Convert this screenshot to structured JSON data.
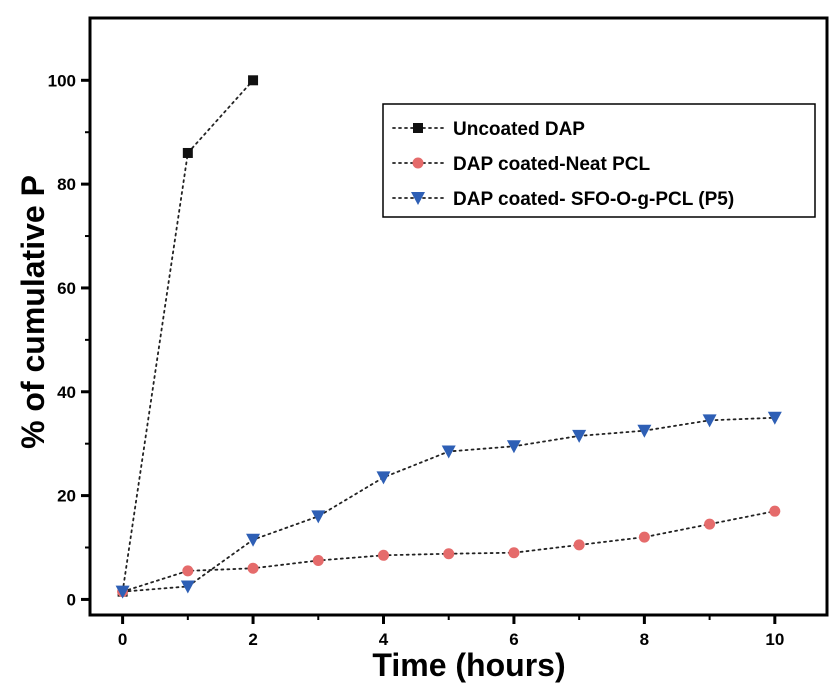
{
  "chart_data": {
    "type": "scatter",
    "title": "",
    "xlabel": "Time (hours)",
    "ylabel": "% of cumulative P",
    "xlim": [
      -0.5,
      10.8
    ],
    "ylim": [
      -3,
      112
    ],
    "xticks": [
      0,
      2,
      4,
      6,
      8,
      10
    ],
    "yticks": [
      0,
      20,
      40,
      60,
      80,
      100
    ],
    "legend_position": "top-right",
    "grid": false,
    "series": [
      {
        "name": "Uncoated DAP",
        "marker": "square",
        "color": "#111111",
        "line": "dotted",
        "x": [
          0,
          1,
          2
        ],
        "y": [
          1.5,
          86,
          100
        ]
      },
      {
        "name": "DAP coated-Neat PCL",
        "marker": "circle",
        "color": "#e56b6b",
        "line": "dotted",
        "x": [
          0,
          1,
          2,
          3,
          4,
          5,
          6,
          7,
          8,
          9,
          10
        ],
        "y": [
          1.5,
          5.5,
          6,
          7.5,
          8.5,
          8.8,
          9,
          10.5,
          12,
          14.5,
          17
        ]
      },
      {
        "name": "DAP coated- SFO-O-g-PCL (P5)",
        "marker": "triangle-down",
        "color": "#2e5fb5",
        "line": "dotted",
        "x": [
          0,
          1,
          2,
          3,
          4,
          5,
          6,
          7,
          8,
          9,
          10
        ],
        "y": [
          1.5,
          2.5,
          11.5,
          16,
          23.5,
          28.5,
          29.5,
          31.5,
          32.5,
          34.5,
          35
        ]
      }
    ]
  }
}
